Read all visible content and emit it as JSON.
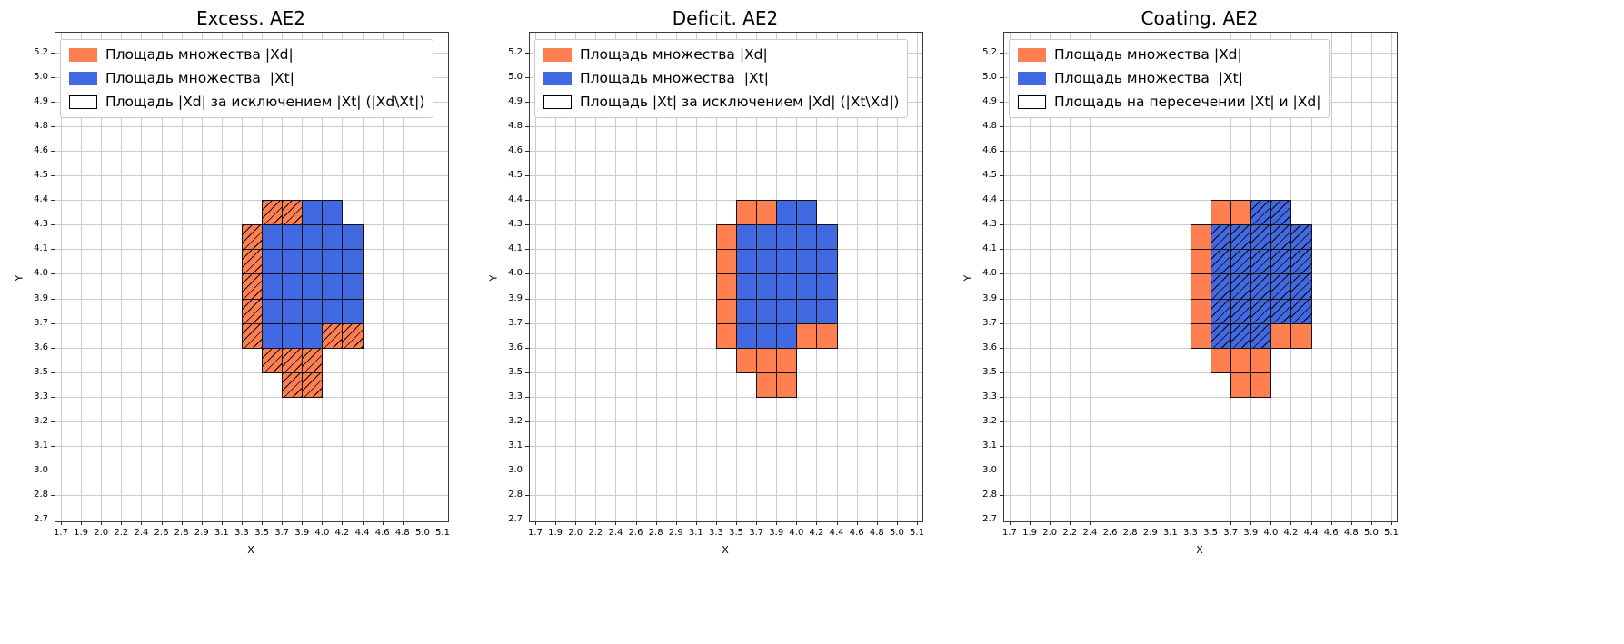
{
  "colors": {
    "xd_fill": "#FF7F50",
    "xt_fill": "#4169E1",
    "grid_line": "#cccccc",
    "cell_edge": "#111111",
    "hatch": "#000000",
    "legend_border": "#c9c9c9",
    "background": "#ffffff"
  },
  "chart_data": [
    {
      "type": "heatmap",
      "title": "Excess. AE2",
      "xlabel": "X",
      "ylabel": "Y",
      "grid": true,
      "legend_position": "upper left",
      "x_tick_labels": [
        "1.7",
        "1.9",
        "2.0",
        "2.2",
        "2.4",
        "2.6",
        "2.8",
        "2.9",
        "3.1",
        "3.3",
        "3.5",
        "3.7",
        "3.9",
        "4.0",
        "4.2",
        "4.4",
        "4.6",
        "4.8",
        "5.0",
        "5.1"
      ],
      "y_tick_labels": [
        "2.7",
        "2.8",
        "3.0",
        "3.1",
        "3.2",
        "3.3",
        "3.5",
        "3.6",
        "3.7",
        "3.9",
        "4.0",
        "4.1",
        "4.3",
        "4.4",
        "4.5",
        "4.6",
        "4.8",
        "4.9",
        "5.0",
        "5.2"
      ],
      "legend": [
        {
          "label": "Площадь множества |Xd|",
          "swatch": "orange"
        },
        {
          "label": "Площадь множества  |Xt|",
          "swatch": "blue"
        },
        {
          "label": "Площадь |Xd| за исключением |Xt| (|Xd\\Xt|)",
          "swatch": "hatch"
        }
      ],
      "series": [
        {
          "name": "Площадь множества |Xd|",
          "color": "#FF7F50",
          "hatched": true,
          "cells": [
            [
              10,
              12
            ],
            [
              11,
              12
            ],
            [
              9,
              11
            ],
            [
              9,
              10
            ],
            [
              9,
              9
            ],
            [
              9,
              8
            ],
            [
              9,
              7
            ],
            [
              10,
              6
            ],
            [
              11,
              6
            ],
            [
              12,
              6
            ],
            [
              11,
              5
            ],
            [
              12,
              5
            ],
            [
              13,
              7
            ],
            [
              14,
              7
            ]
          ]
        },
        {
          "name": "Площадь множества  |Xt|",
          "color": "#4169E1",
          "hatched": false,
          "cells": [
            [
              12,
              12
            ],
            [
              13,
              12
            ],
            [
              10,
              11
            ],
            [
              11,
              11
            ],
            [
              12,
              11
            ],
            [
              13,
              11
            ],
            [
              14,
              11
            ],
            [
              10,
              10
            ],
            [
              11,
              10
            ],
            [
              12,
              10
            ],
            [
              13,
              10
            ],
            [
              14,
              10
            ],
            [
              10,
              9
            ],
            [
              11,
              9
            ],
            [
              12,
              9
            ],
            [
              13,
              9
            ],
            [
              14,
              9
            ],
            [
              10,
              8
            ],
            [
              11,
              8
            ],
            [
              12,
              8
            ],
            [
              13,
              8
            ],
            [
              14,
              8
            ],
            [
              10,
              7
            ],
            [
              11,
              7
            ],
            [
              12,
              7
            ]
          ]
        }
      ]
    },
    {
      "type": "heatmap",
      "title": "Deficit. AE2",
      "xlabel": "X",
      "ylabel": "Y",
      "grid": true,
      "legend_position": "upper left",
      "x_tick_labels": [
        "1.7",
        "1.9",
        "2.0",
        "2.2",
        "2.4",
        "2.6",
        "2.8",
        "2.9",
        "3.1",
        "3.3",
        "3.5",
        "3.7",
        "3.9",
        "4.0",
        "4.2",
        "4.4",
        "4.6",
        "4.8",
        "5.0",
        "5.1"
      ],
      "y_tick_labels": [
        "2.7",
        "2.8",
        "3.0",
        "3.1",
        "3.2",
        "3.3",
        "3.5",
        "3.6",
        "3.7",
        "3.9",
        "4.0",
        "4.1",
        "4.3",
        "4.4",
        "4.5",
        "4.6",
        "4.8",
        "4.9",
        "5.0",
        "5.2"
      ],
      "legend": [
        {
          "label": "Площадь множества |Xd|",
          "swatch": "orange"
        },
        {
          "label": "Площадь множества  |Xt|",
          "swatch": "blue"
        },
        {
          "label": "Площадь |Xt| за исключением |Xd| (|Xt\\Xd|)",
          "swatch": "plain"
        }
      ],
      "series": [
        {
          "name": "Площадь множества |Xd|",
          "color": "#FF7F50",
          "hatched": false,
          "cells": [
            [
              10,
              12
            ],
            [
              11,
              12
            ],
            [
              9,
              11
            ],
            [
              9,
              10
            ],
            [
              9,
              9
            ],
            [
              9,
              8
            ],
            [
              9,
              7
            ],
            [
              10,
              6
            ],
            [
              11,
              6
            ],
            [
              12,
              6
            ],
            [
              11,
              5
            ],
            [
              12,
              5
            ],
            [
              13,
              7
            ],
            [
              14,
              7
            ]
          ]
        },
        {
          "name": "Площадь множества  |Xt|",
          "color": "#4169E1",
          "hatched": false,
          "cells": [
            [
              12,
              12
            ],
            [
              13,
              12
            ],
            [
              10,
              11
            ],
            [
              11,
              11
            ],
            [
              12,
              11
            ],
            [
              13,
              11
            ],
            [
              14,
              11
            ],
            [
              10,
              10
            ],
            [
              11,
              10
            ],
            [
              12,
              10
            ],
            [
              13,
              10
            ],
            [
              14,
              10
            ],
            [
              10,
              9
            ],
            [
              11,
              9
            ],
            [
              12,
              9
            ],
            [
              13,
              9
            ],
            [
              14,
              9
            ],
            [
              10,
              8
            ],
            [
              11,
              8
            ],
            [
              12,
              8
            ],
            [
              13,
              8
            ],
            [
              14,
              8
            ],
            [
              10,
              7
            ],
            [
              11,
              7
            ],
            [
              12,
              7
            ]
          ]
        }
      ]
    },
    {
      "type": "heatmap",
      "title": "Coating. AE2",
      "xlabel": "X",
      "ylabel": "Y",
      "grid": true,
      "legend_position": "upper left",
      "x_tick_labels": [
        "1.7",
        "1.9",
        "2.0",
        "2.2",
        "2.4",
        "2.6",
        "2.8",
        "2.9",
        "3.1",
        "3.3",
        "3.5",
        "3.7",
        "3.9",
        "4.0",
        "4.2",
        "4.4",
        "4.6",
        "4.8",
        "5.0",
        "5.1"
      ],
      "y_tick_labels": [
        "2.7",
        "2.8",
        "3.0",
        "3.1",
        "3.2",
        "3.3",
        "3.5",
        "3.6",
        "3.7",
        "3.9",
        "4.0",
        "4.1",
        "4.3",
        "4.4",
        "4.5",
        "4.6",
        "4.8",
        "4.9",
        "5.0",
        "5.2"
      ],
      "legend": [
        {
          "label": "Площадь множества |Xd|",
          "swatch": "orange"
        },
        {
          "label": "Площадь множества  |Xt|",
          "swatch": "blue"
        },
        {
          "label": "Площадь на пересечении |Xt| и |Xd|",
          "swatch": "hatch"
        }
      ],
      "series": [
        {
          "name": "Площадь множества |Xd|",
          "color": "#FF7F50",
          "hatched": false,
          "cells": [
            [
              10,
              12
            ],
            [
              11,
              12
            ],
            [
              9,
              11
            ],
            [
              9,
              10
            ],
            [
              9,
              9
            ],
            [
              9,
              8
            ],
            [
              9,
              7
            ],
            [
              10,
              6
            ],
            [
              11,
              6
            ],
            [
              12,
              6
            ],
            [
              11,
              5
            ],
            [
              12,
              5
            ],
            [
              13,
              7
            ],
            [
              14,
              7
            ]
          ]
        },
        {
          "name": "Площадь множества  |Xt|",
          "color": "#4169E1",
          "hatched": true,
          "cells": [
            [
              12,
              12
            ],
            [
              13,
              12
            ],
            [
              10,
              11
            ],
            [
              11,
              11
            ],
            [
              12,
              11
            ],
            [
              13,
              11
            ],
            [
              14,
              11
            ],
            [
              10,
              10
            ],
            [
              11,
              10
            ],
            [
              12,
              10
            ],
            [
              13,
              10
            ],
            [
              14,
              10
            ],
            [
              10,
              9
            ],
            [
              11,
              9
            ],
            [
              12,
              9
            ],
            [
              13,
              9
            ],
            [
              14,
              9
            ],
            [
              10,
              8
            ],
            [
              11,
              8
            ],
            [
              12,
              8
            ],
            [
              13,
              8
            ],
            [
              14,
              8
            ],
            [
              10,
              7
            ],
            [
              11,
              7
            ],
            [
              12,
              7
            ]
          ]
        }
      ]
    }
  ]
}
